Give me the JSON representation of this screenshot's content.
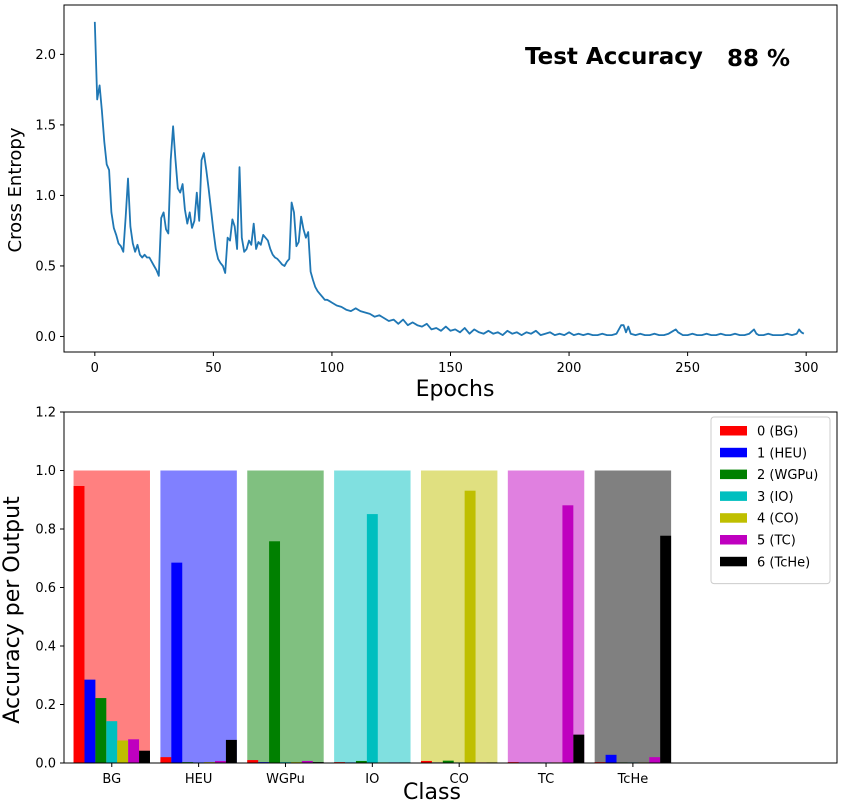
{
  "chart_data": [
    {
      "type": "line",
      "xlabel": "Epochs",
      "ylabel": "Cross Entropy",
      "xlim": [
        -13,
        313
      ],
      "ylim": [
        -0.11,
        2.35
      ],
      "xticks": [
        "0",
        "50",
        "100",
        "150",
        "200",
        "250",
        "300"
      ],
      "yticks": [
        "0.0",
        "0.5",
        "1.0",
        "1.5",
        "2.0"
      ],
      "grid": false,
      "color": "#1f77b4",
      "annotation": {
        "label": "Test Accuracy",
        "value": "88 %"
      },
      "series": [
        {
          "points": [
            [
              0,
              2.23
            ],
            [
              1,
              1.68
            ],
            [
              2,
              1.78
            ],
            [
              3,
              1.6
            ],
            [
              4,
              1.38
            ],
            [
              5,
              1.22
            ],
            [
              6,
              1.18
            ],
            [
              7,
              0.88
            ],
            [
              8,
              0.77
            ],
            [
              9,
              0.72
            ],
            [
              10,
              0.66
            ],
            [
              11,
              0.64
            ],
            [
              12,
              0.6
            ],
            [
              13,
              0.85
            ],
            [
              14,
              1.12
            ],
            [
              15,
              0.78
            ],
            [
              16,
              0.66
            ],
            [
              17,
              0.6
            ],
            [
              18,
              0.65
            ],
            [
              19,
              0.58
            ],
            [
              20,
              0.56
            ],
            [
              21,
              0.58
            ],
            [
              22,
              0.56
            ],
            [
              23,
              0.56
            ],
            [
              24,
              0.53
            ],
            [
              25,
              0.5
            ],
            [
              26,
              0.47
            ],
            [
              27,
              0.43
            ],
            [
              28,
              0.84
            ],
            [
              29,
              0.88
            ],
            [
              30,
              0.76
            ],
            [
              31,
              0.73
            ],
            [
              32,
              1.25
            ],
            [
              33,
              1.49
            ],
            [
              34,
              1.26
            ],
            [
              35,
              1.05
            ],
            [
              36,
              1.02
            ],
            [
              37,
              1.08
            ],
            [
              38,
              0.9
            ],
            [
              39,
              0.8
            ],
            [
              40,
              0.88
            ],
            [
              41,
              0.77
            ],
            [
              42,
              0.82
            ],
            [
              43,
              1.02
            ],
            [
              44,
              0.82
            ],
            [
              45,
              1.25
            ],
            [
              46,
              1.3
            ],
            [
              47,
              1.18
            ],
            [
              48,
              1.05
            ],
            [
              49,
              0.9
            ],
            [
              50,
              0.75
            ],
            [
              51,
              0.62
            ],
            [
              52,
              0.55
            ],
            [
              53,
              0.52
            ],
            [
              54,
              0.5
            ],
            [
              55,
              0.45
            ],
            [
              56,
              0.7
            ],
            [
              57,
              0.68
            ],
            [
              58,
              0.83
            ],
            [
              59,
              0.78
            ],
            [
              60,
              0.62
            ],
            [
              61,
              1.2
            ],
            [
              62,
              0.7
            ],
            [
              63,
              0.6
            ],
            [
              64,
              0.62
            ],
            [
              65,
              0.68
            ],
            [
              66,
              0.65
            ],
            [
              67,
              0.8
            ],
            [
              68,
              0.62
            ],
            [
              69,
              0.67
            ],
            [
              70,
              0.65
            ],
            [
              71,
              0.72
            ],
            [
              72,
              0.7
            ],
            [
              73,
              0.68
            ],
            [
              74,
              0.62
            ],
            [
              75,
              0.58
            ],
            [
              76,
              0.56
            ],
            [
              77,
              0.55
            ],
            [
              78,
              0.53
            ],
            [
              79,
              0.51
            ],
            [
              80,
              0.5
            ],
            [
              81,
              0.53
            ],
            [
              82,
              0.55
            ],
            [
              83,
              0.95
            ],
            [
              84,
              0.88
            ],
            [
              85,
              0.64
            ],
            [
              86,
              0.67
            ],
            [
              87,
              0.85
            ],
            [
              88,
              0.76
            ],
            [
              89,
              0.7
            ],
            [
              90,
              0.74
            ],
            [
              91,
              0.46
            ],
            [
              92,
              0.4
            ],
            [
              93,
              0.35
            ],
            [
              94,
              0.32
            ],
            [
              95,
              0.3
            ],
            [
              96,
              0.28
            ],
            [
              97,
              0.26
            ],
            [
              98,
              0.26
            ],
            [
              99,
              0.25
            ],
            [
              100,
              0.24
            ],
            [
              102,
              0.22
            ],
            [
              104,
              0.21
            ],
            [
              106,
              0.19
            ],
            [
              108,
              0.18
            ],
            [
              110,
              0.2
            ],
            [
              112,
              0.18
            ],
            [
              114,
              0.17
            ],
            [
              116,
              0.16
            ],
            [
              118,
              0.14
            ],
            [
              120,
              0.15
            ],
            [
              122,
              0.13
            ],
            [
              124,
              0.11
            ],
            [
              126,
              0.12
            ],
            [
              128,
              0.09
            ],
            [
              130,
              0.12
            ],
            [
              132,
              0.08
            ],
            [
              134,
              0.1
            ],
            [
              136,
              0.08
            ],
            [
              138,
              0.07
            ],
            [
              140,
              0.09
            ],
            [
              142,
              0.05
            ],
            [
              144,
              0.06
            ],
            [
              146,
              0.04
            ],
            [
              148,
              0.07
            ],
            [
              150,
              0.04
            ],
            [
              152,
              0.05
            ],
            [
              154,
              0.03
            ],
            [
              156,
              0.06
            ],
            [
              158,
              0.02
            ],
            [
              160,
              0.05
            ],
            [
              162,
              0.03
            ],
            [
              164,
              0.02
            ],
            [
              166,
              0.04
            ],
            [
              168,
              0.02
            ],
            [
              170,
              0.03
            ],
            [
              172,
              0.01
            ],
            [
              174,
              0.04
            ],
            [
              176,
              0.02
            ],
            [
              178,
              0.03
            ],
            [
              180,
              0.01
            ],
            [
              182,
              0.03
            ],
            [
              184,
              0.02
            ],
            [
              186,
              0.04
            ],
            [
              188,
              0.01
            ],
            [
              190,
              0.02
            ],
            [
              192,
              0.03
            ],
            [
              194,
              0.01
            ],
            [
              196,
              0.02
            ],
            [
              198,
              0.01
            ],
            [
              200,
              0.03
            ],
            [
              202,
              0.01
            ],
            [
              204,
              0.02
            ],
            [
              206,
              0.01
            ],
            [
              208,
              0.02
            ],
            [
              210,
              0.01
            ],
            [
              212,
              0.01
            ],
            [
              214,
              0.02
            ],
            [
              216,
              0.01
            ],
            [
              218,
              0.01
            ],
            [
              220,
              0.02
            ],
            [
              222,
              0.08
            ],
            [
              223,
              0.08
            ],
            [
              224,
              0.03
            ],
            [
              225,
              0.07
            ],
            [
              226,
              0.02
            ],
            [
              228,
              0.01
            ],
            [
              230,
              0.02
            ],
            [
              232,
              0.01
            ],
            [
              234,
              0.01
            ],
            [
              236,
              0.02
            ],
            [
              238,
              0.01
            ],
            [
              240,
              0.01
            ],
            [
              242,
              0.02
            ],
            [
              244,
              0.04
            ],
            [
              245,
              0.05
            ],
            [
              246,
              0.03
            ],
            [
              248,
              0.01
            ],
            [
              250,
              0.01
            ],
            [
              252,
              0.02
            ],
            [
              254,
              0.01
            ],
            [
              256,
              0.01
            ],
            [
              258,
              0.02
            ],
            [
              260,
              0.01
            ],
            [
              262,
              0.01
            ],
            [
              264,
              0.02
            ],
            [
              266,
              0.01
            ],
            [
              268,
              0.01
            ],
            [
              270,
              0.02
            ],
            [
              272,
              0.01
            ],
            [
              274,
              0.01
            ],
            [
              276,
              0.02
            ],
            [
              278,
              0.05
            ],
            [
              279,
              0.02
            ],
            [
              280,
              0.01
            ],
            [
              282,
              0.01
            ],
            [
              284,
              0.02
            ],
            [
              286,
              0.01
            ],
            [
              288,
              0.01
            ],
            [
              290,
              0.01
            ],
            [
              292,
              0.02
            ],
            [
              294,
              0.01
            ],
            [
              296,
              0.02
            ],
            [
              297,
              0.05
            ],
            [
              298,
              0.03
            ],
            [
              299,
              0.02
            ]
          ]
        }
      ]
    },
    {
      "type": "bar",
      "xlabel": "Class",
      "ylabel": "Accuracy per Output",
      "ylim": [
        0,
        1.2
      ],
      "yticks": [
        "0.0",
        "0.2",
        "0.4",
        "0.6",
        "0.8",
        "1.0",
        "1.2"
      ],
      "xlim": [
        -0.55,
        8.35
      ],
      "grid": false,
      "legend_position": "top-right",
      "categories": [
        "BG",
        "HEU",
        "WGPu",
        "IO",
        "CO",
        "TC",
        "TcHe"
      ],
      "background_bars": {
        "value": 1.0,
        "colors": [
          "#ff8080",
          "#8080ff",
          "#80c080",
          "#80e0e0",
          "#e0e080",
          "#e080e0",
          "#808080"
        ]
      },
      "series": [
        {
          "name": "0 (BG)",
          "color": "#ff0000",
          "values": [
            0.947,
            0.02,
            0.01,
            0.003,
            0.007,
            0.003,
            0.003
          ]
        },
        {
          "name": "1 (HEU)",
          "color": "#0000ff",
          "values": [
            0.285,
            0.685,
            0.003,
            0.002,
            0.002,
            0.002,
            0.028
          ]
        },
        {
          "name": "2 (WGPu)",
          "color": "#008000",
          "values": [
            0.222,
            0.003,
            0.758,
            0.007,
            0.008,
            0.002,
            0.002
          ]
        },
        {
          "name": "3 (IO)",
          "color": "#00bfbf",
          "values": [
            0.143,
            0.002,
            0.003,
            0.851,
            0.002,
            0.002,
            0.002
          ]
        },
        {
          "name": "4 (CO)",
          "color": "#bfbf00",
          "values": [
            0.077,
            0.003,
            0.003,
            0.002,
            0.931,
            0.002,
            0.002
          ]
        },
        {
          "name": "5 (TC)",
          "color": "#bf00bf",
          "values": [
            0.081,
            0.007,
            0.007,
            0.002,
            0.002,
            0.881,
            0.02
          ]
        },
        {
          "name": "6 (TcHe)",
          "color": "#000000",
          "values": [
            0.042,
            0.079,
            0.003,
            0.002,
            0.002,
            0.097,
            0.777
          ]
        }
      ]
    }
  ]
}
